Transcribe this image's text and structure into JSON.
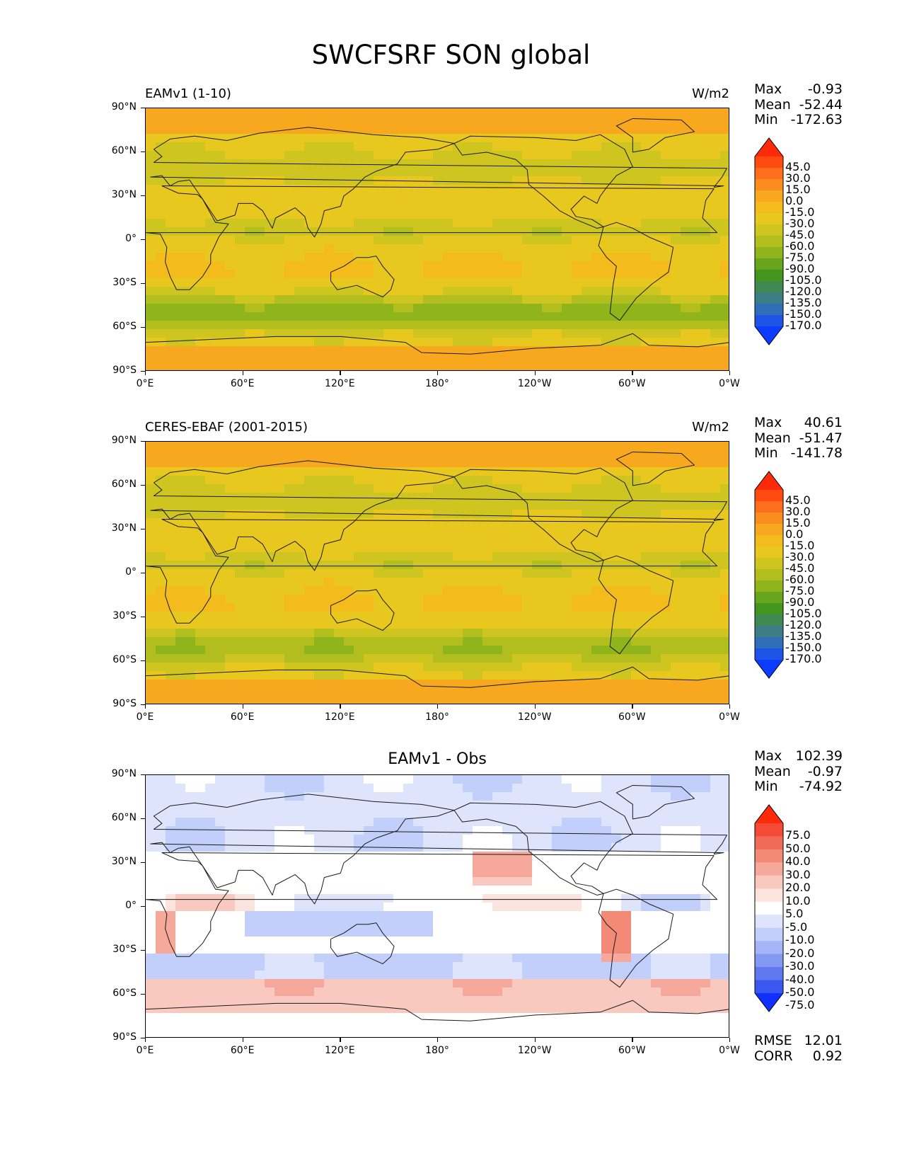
{
  "title": "SWCFSRF SON global",
  "lat_ticks": [
    "90°N",
    "60°N",
    "30°N",
    "0°",
    "30°S",
    "60°S",
    "90°S"
  ],
  "lon_ticks": [
    "0°E",
    "60°E",
    "120°E",
    "180°",
    "120°W",
    "60°W",
    "0°W"
  ],
  "panels": [
    {
      "id": "model",
      "title_left": "EAMv1 (1-10)",
      "title_center": "",
      "units": "W/m2",
      "stats": {
        "max_label": "Max",
        "max": "-0.93",
        "mean_label": "Mean",
        "mean": "-52.44",
        "min_label": "Min",
        "min": "-172.63"
      },
      "colorbar": {
        "labels": [
          "45.0",
          "30.0",
          "15.0",
          "0.0",
          "-15.0",
          "-30.0",
          "-45.0",
          "-60.0",
          "-75.0",
          "-90.0",
          "-105.0",
          "-120.0",
          "-135.0",
          "-150.0",
          "-170.0"
        ],
        "colors": [
          "#ff2a0a",
          "#ff4a10",
          "#ff6e1c",
          "#fb8c1e",
          "#f8a81e",
          "#f3bb1c",
          "#e8c71e",
          "#cfc520",
          "#b2be1e",
          "#8fb41c",
          "#66a51c",
          "#44951e",
          "#3f8a52",
          "#3c7d86",
          "#2f6fb8",
          "#1f55e6",
          "#0c3cff"
        ]
      }
    },
    {
      "id": "obs",
      "title_left": "CERES-EBAF (2001-2015)",
      "title_center": "",
      "units": "W/m2",
      "stats": {
        "max_label": "Max",
        "max": "40.61",
        "mean_label": "Mean",
        "mean": "-51.47",
        "min_label": "Min",
        "min": "-141.78"
      },
      "colorbar": {
        "labels": [
          "45.0",
          "30.0",
          "15.0",
          "0.0",
          "-15.0",
          "-30.0",
          "-45.0",
          "-60.0",
          "-75.0",
          "-90.0",
          "-105.0",
          "-120.0",
          "-135.0",
          "-150.0",
          "-170.0"
        ],
        "colors": [
          "#ff2a0a",
          "#ff4a10",
          "#ff6e1c",
          "#fb8c1e",
          "#f8a81e",
          "#f3bb1c",
          "#e8c71e",
          "#cfc520",
          "#b2be1e",
          "#8fb41c",
          "#66a51c",
          "#44951e",
          "#3f8a52",
          "#3c7d86",
          "#2f6fb8",
          "#1f55e6",
          "#0c3cff"
        ]
      }
    },
    {
      "id": "diff",
      "title_left": "",
      "title_center": "EAMv1 - Obs",
      "units": "",
      "stats": {
        "max_label": "Max",
        "max": "102.39",
        "mean_label": "Mean",
        "mean": "-0.97",
        "min_label": "Min",
        "min": "-74.92"
      },
      "colorbar": {
        "labels": [
          "75.0",
          "50.0",
          "40.0",
          "30.0",
          "20.0",
          "10.0",
          "5.0",
          "-5.0",
          "-10.0",
          "-20.0",
          "-30.0",
          "-40.0",
          "-50.0",
          "-75.0"
        ],
        "colors": [
          "#ff2a0a",
          "#f44a36",
          "#f26a58",
          "#f38a78",
          "#f6a99a",
          "#f9c8bf",
          "#fbe3de",
          "#ffffff",
          "#dde4fb",
          "#c2cffb",
          "#a4b6f8",
          "#8399f3",
          "#5f78f0",
          "#3a58f0",
          "#1030ff"
        ]
      },
      "rmse_label": "RMSE",
      "rmse": "12.01",
      "corr_label": "CORR",
      "corr": "0.92"
    }
  ],
  "colors": {
    "ocean_model": "#e8c020",
    "land_outline": "#1a1a1a"
  }
}
